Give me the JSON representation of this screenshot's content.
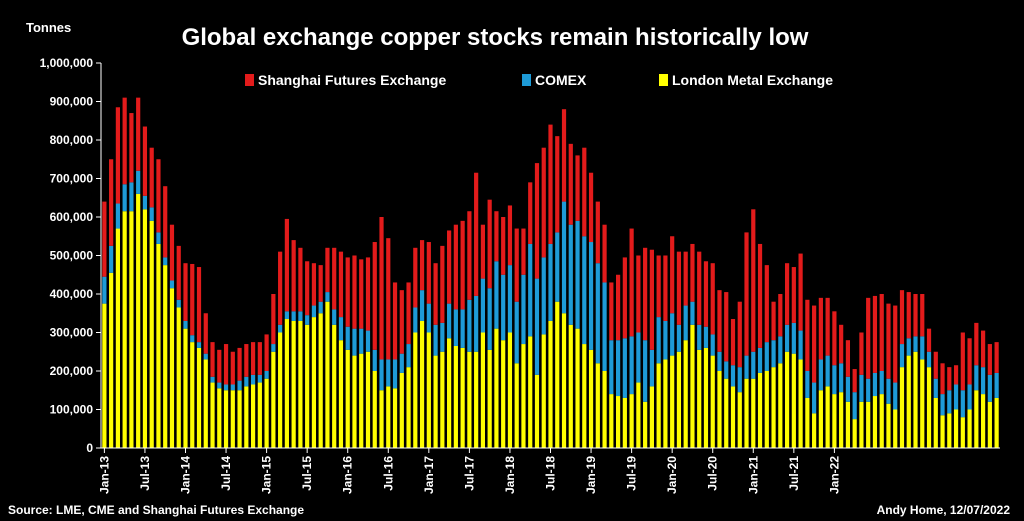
{
  "chart_data": {
    "type": "bar",
    "stacked": true,
    "title": "Global exchange copper stocks remain historically low",
    "ylabel": "Tonnes",
    "ylim": [
      0,
      1000000
    ],
    "yticks": [
      0,
      100000,
      200000,
      300000,
      400000,
      500000,
      600000,
      700000,
      800000,
      900000,
      1000000
    ],
    "ytick_labels": [
      "0",
      "100,000",
      "200,000",
      "300,000",
      "400,000",
      "500,000",
      "600,000",
      "700,000",
      "800,000",
      "900,000",
      "1,000,000"
    ],
    "grid": false,
    "legend_position": "top",
    "start": "Jan-13",
    "xtick_labels": [
      "Jan-13",
      "Jul-13",
      "Jan-14",
      "Jul-14",
      "Jan-15",
      "Jul-15",
      "Jan-16",
      "Jul-16",
      "Jan-17",
      "Jul-17",
      "Jan-18",
      "Jul-18",
      "Jan-19",
      "Jul-19",
      "Jan-20",
      "Jul-20",
      "Jan-21",
      "Jul-21",
      "Jan-22"
    ],
    "xtick_step_months": 6,
    "series": [
      {
        "name": "London Metal Exchange",
        "color": "#FFFF00",
        "values": [
          375000,
          455000,
          570000,
          615000,
          615000,
          660000,
          620000,
          590000,
          530000,
          475000,
          415000,
          365000,
          310000,
          275000,
          260000,
          230000,
          170000,
          155000,
          150000,
          150000,
          150000,
          160000,
          165000,
          170000,
          180000,
          250000,
          300000,
          335000,
          330000,
          330000,
          320000,
          340000,
          350000,
          380000,
          320000,
          280000,
          255000,
          240000,
          245000,
          250000,
          200000,
          150000,
          160000,
          155000,
          195000,
          210000,
          300000,
          330000,
          300000,
          240000,
          250000,
          285000,
          265000,
          260000,
          250000,
          250000,
          300000,
          255000,
          310000,
          280000,
          300000,
          220000,
          270000,
          290000,
          190000,
          295000,
          330000,
          380000,
          350000,
          320000,
          310000,
          270000,
          255000,
          220000,
          200000,
          140000,
          135000,
          130000,
          140000,
          170000,
          120000,
          160000,
          220000,
          230000,
          240000,
          250000,
          280000,
          320000,
          255000,
          260000,
          240000,
          200000,
          180000,
          160000,
          145000,
          180000,
          180000,
          195000,
          200000,
          210000,
          220000,
          250000,
          245000,
          230000,
          130000,
          90000,
          150000,
          160000,
          140000,
          145000,
          120000,
          75000,
          120000,
          120000,
          135000,
          140000,
          115000,
          100000,
          210000,
          240000,
          250000,
          230000,
          210000,
          130000,
          85000,
          90000,
          100000,
          80000,
          100000,
          150000,
          140000,
          120000,
          130000
        ]
      },
      {
        "name": "COMEX",
        "color": "#1E9BD7",
        "values": [
          70000,
          70000,
          65000,
          70000,
          75000,
          60000,
          35000,
          35000,
          30000,
          20000,
          20000,
          20000,
          20000,
          18000,
          15000,
          15000,
          15000,
          15000,
          15000,
          15000,
          25000,
          25000,
          25000,
          20000,
          20000,
          20000,
          20000,
          20000,
          25000,
          25000,
          25000,
          30000,
          30000,
          25000,
          40000,
          60000,
          60000,
          70000,
          65000,
          55000,
          55000,
          80000,
          70000,
          75000,
          50000,
          60000,
          65000,
          80000,
          75000,
          80000,
          75000,
          90000,
          95000,
          100000,
          135000,
          145000,
          140000,
          160000,
          175000,
          170000,
          175000,
          160000,
          180000,
          240000,
          250000,
          200000,
          200000,
          180000,
          290000,
          260000,
          280000,
          280000,
          280000,
          260000,
          230000,
          140000,
          145000,
          155000,
          150000,
          130000,
          160000,
          95000,
          120000,
          100000,
          110000,
          70000,
          90000,
          60000,
          65000,
          55000,
          55000,
          50000,
          45000,
          55000,
          65000,
          60000,
          70000,
          65000,
          75000,
          70000,
          70000,
          70000,
          80000,
          75000,
          70000,
          80000,
          80000,
          80000,
          75000,
          75000,
          65000,
          70000,
          70000,
          60000,
          60000,
          60000,
          65000,
          70000,
          60000,
          45000,
          40000,
          60000,
          40000,
          50000,
          55000,
          60000,
          65000,
          70000,
          65000,
          65000,
          70000,
          70000,
          65000
        ]
      },
      {
        "name": "Shanghai Futures Exchange",
        "color": "#E31B1B",
        "values": [
          195000,
          225000,
          250000,
          225000,
          180000,
          190000,
          180000,
          155000,
          190000,
          185000,
          145000,
          140000,
          150000,
          185000,
          195000,
          105000,
          90000,
          85000,
          105000,
          85000,
          85000,
          85000,
          85000,
          85000,
          95000,
          130000,
          190000,
          240000,
          185000,
          165000,
          140000,
          110000,
          95000,
          115000,
          160000,
          170000,
          180000,
          190000,
          180000,
          190000,
          280000,
          370000,
          315000,
          200000,
          165000,
          160000,
          155000,
          130000,
          160000,
          160000,
          200000,
          190000,
          220000,
          230000,
          230000,
          320000,
          140000,
          230000,
          130000,
          150000,
          155000,
          190000,
          120000,
          160000,
          300000,
          285000,
          310000,
          250000,
          240000,
          210000,
          170000,
          230000,
          180000,
          160000,
          150000,
          150000,
          170000,
          210000,
          280000,
          200000,
          240000,
          260000,
          160000,
          170000,
          200000,
          190000,
          140000,
          150000,
          190000,
          170000,
          185000,
          160000,
          180000,
          120000,
          170000,
          320000,
          370000,
          270000,
          200000,
          100000,
          110000,
          160000,
          145000,
          200000,
          185000,
          200000,
          160000,
          150000,
          140000,
          100000,
          95000,
          60000,
          110000,
          210000,
          200000,
          200000,
          195000,
          200000,
          140000,
          120000,
          110000,
          110000,
          60000,
          70000,
          80000,
          60000,
          50000,
          150000,
          120000,
          110000,
          95000,
          80000,
          80000
        ]
      }
    ]
  },
  "source_text": "Source: LME, CME and Shanghai Futures Exchange",
  "author_text": "Andy Home, 12/07/2022"
}
